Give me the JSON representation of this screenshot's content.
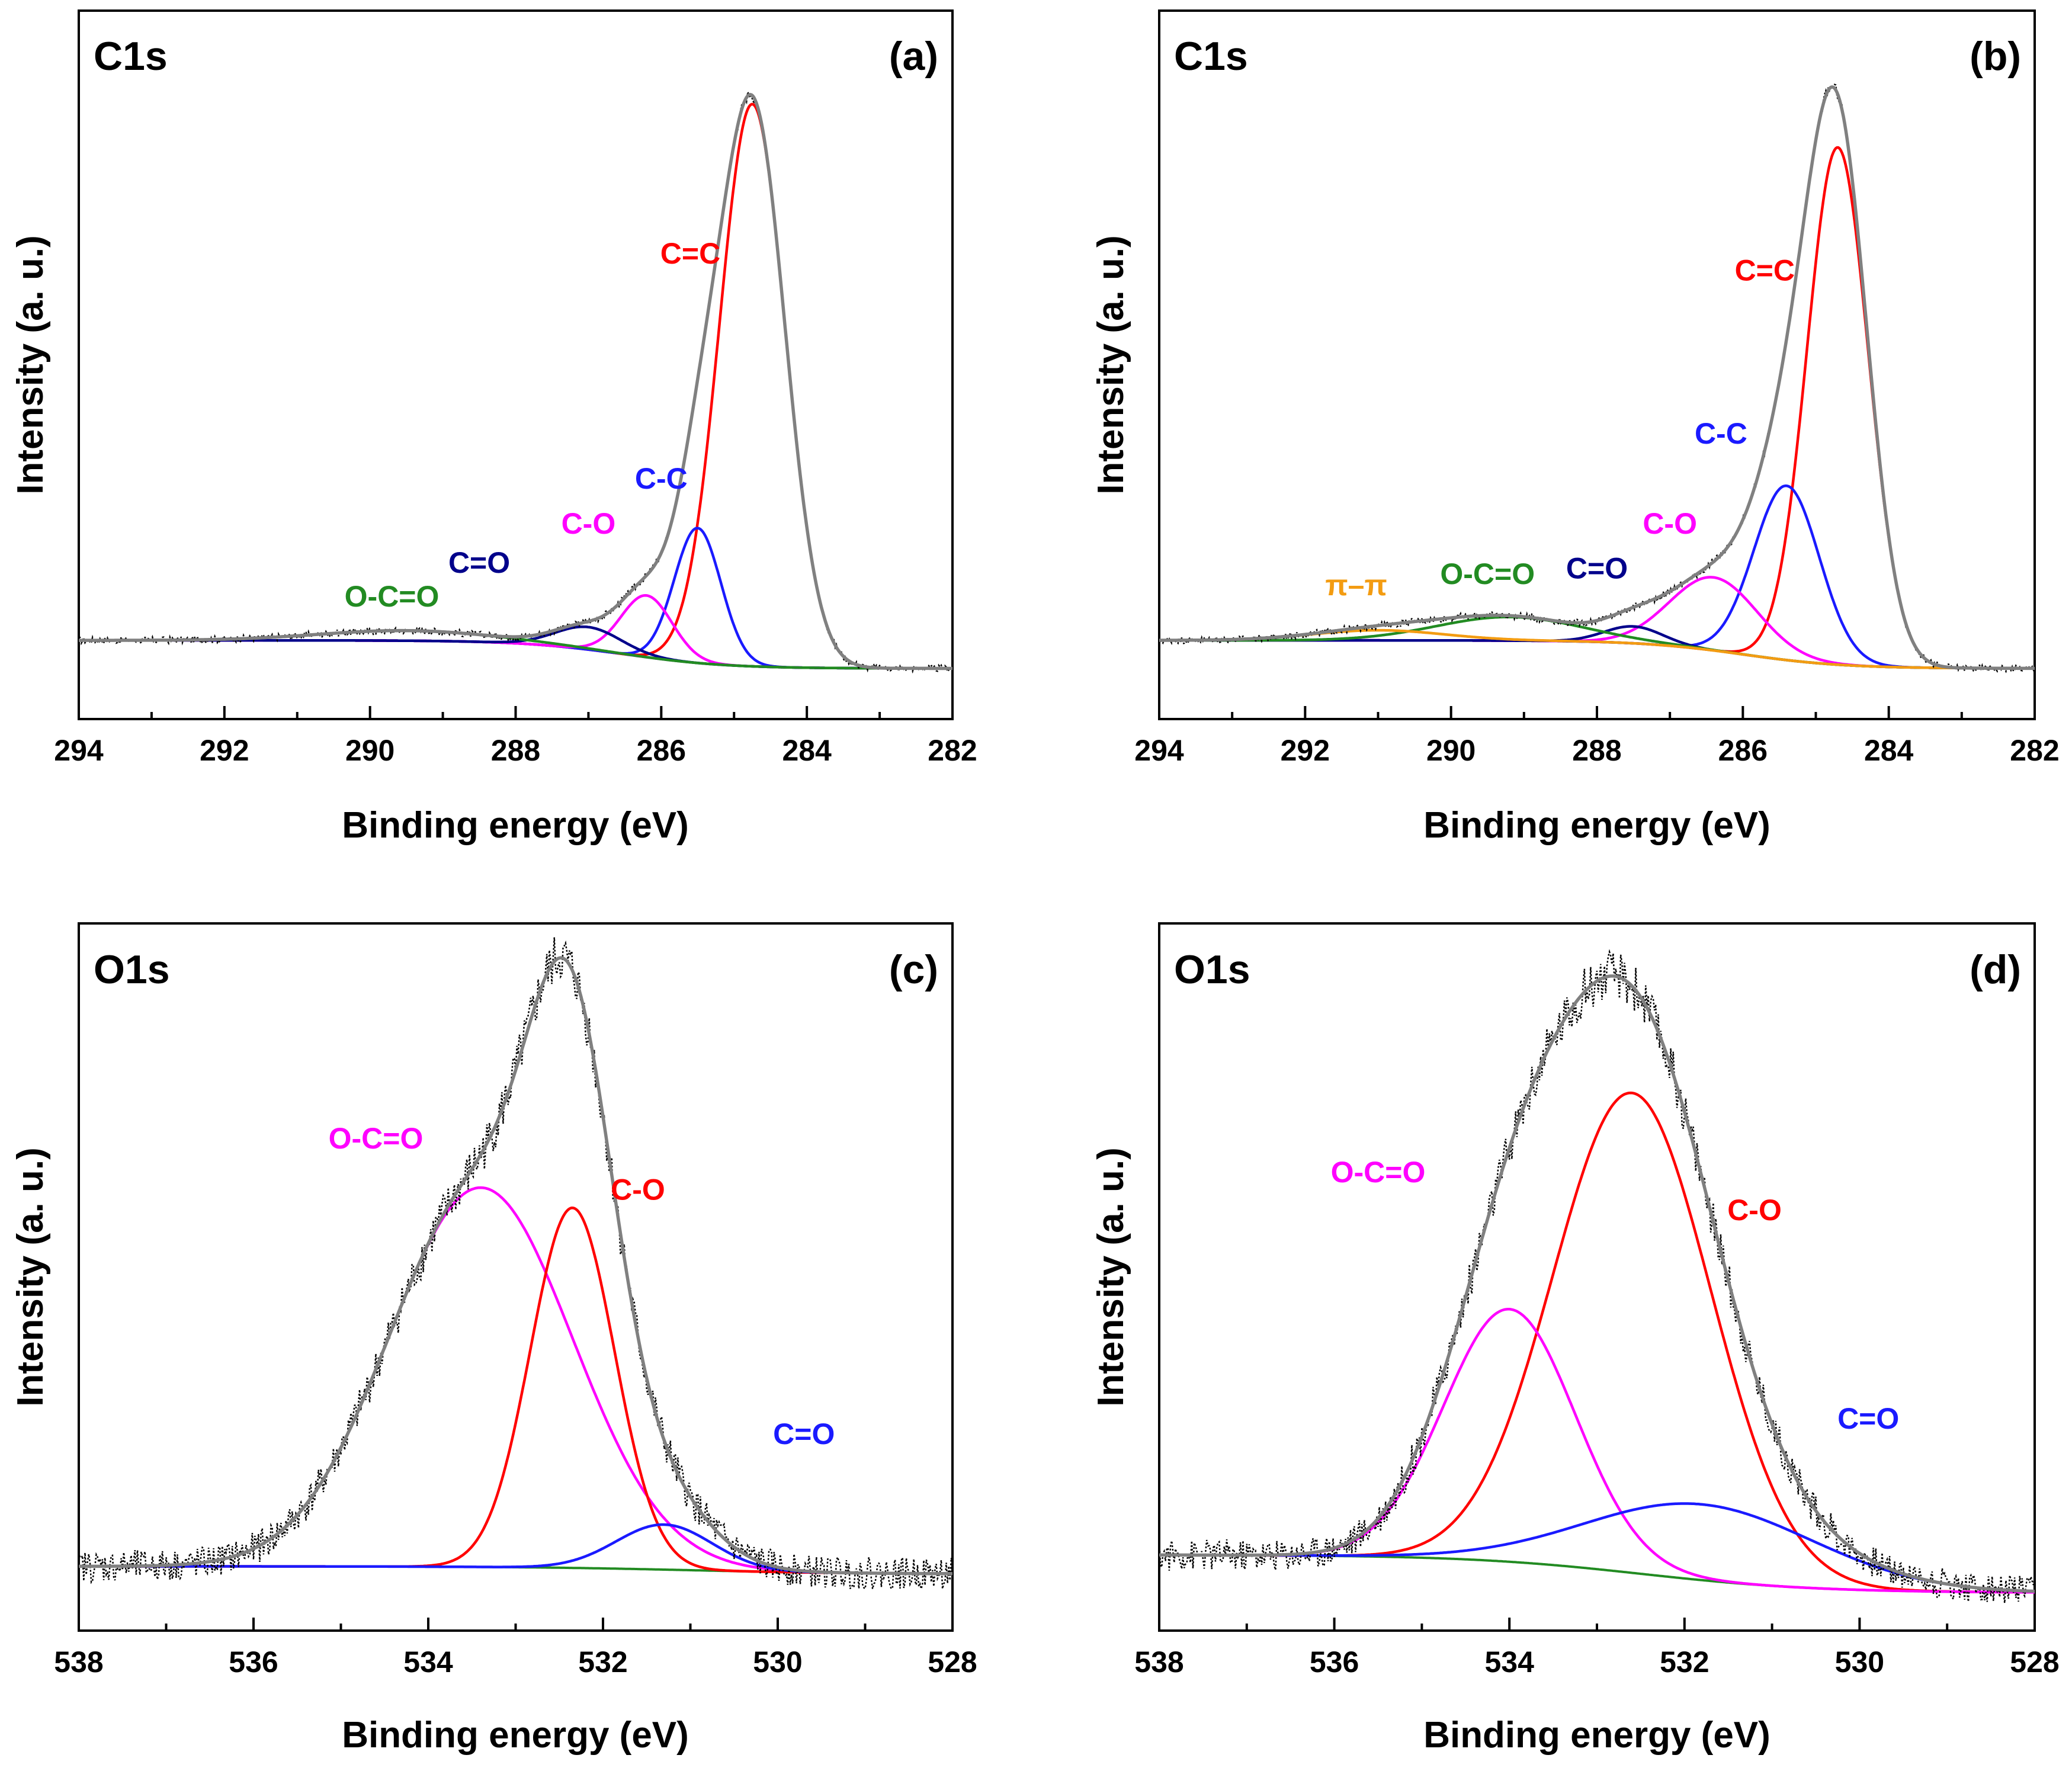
{
  "figure": {
    "description_id": "xps-c1s-o1s-four-panels"
  },
  "colors": {
    "envelope": "#808080",
    "raw": "#000000",
    "red": "#ff0000",
    "blue": "#1a1aff",
    "navy": "#00008b",
    "magenta": "#ff00ff",
    "green": "#228b22",
    "purple": "#7b2fbf",
    "orange": "#f39c12"
  },
  "chart_data": [
    {
      "type": "line",
      "panel": "(a)",
      "element": "C1s",
      "xlabel": "Binding energy (eV)",
      "ylabel": "Intensity (a. u.)",
      "xlim": [
        294,
        282
      ],
      "ylim": [
        -0.14,
        1.12
      ],
      "xticks": [
        294,
        292,
        290,
        288,
        286,
        284,
        282
      ],
      "baseline": {
        "left": 0.0,
        "right": -0.05,
        "step_center": 286.5,
        "step_width": 0.7
      },
      "components": [
        {
          "name": "C=C",
          "center": 284.75,
          "height": 1.0,
          "width": 0.45,
          "color": "red",
          "label_x": 285.6,
          "label_y": 0.67
        },
        {
          "name": "C-C",
          "center": 285.5,
          "height": 0.24,
          "width": 0.32,
          "color": "blue",
          "label_x": 286.0,
          "label_y": 0.27
        },
        {
          "name": "C-O",
          "center": 286.2,
          "height": 0.11,
          "width": 0.35,
          "color": "magenta",
          "label_x": 287.0,
          "label_y": 0.19
        },
        {
          "name": "C=O",
          "center": 287.0,
          "height": 0.04,
          "width": 0.45,
          "color": "navy",
          "label_x": 288.5,
          "label_y": 0.12
        },
        {
          "name": "O-C=O",
          "center": 289.5,
          "height": 0.018,
          "width": 1.2,
          "color": "green",
          "label_x": 289.7,
          "label_y": 0.06
        }
      ],
      "noise_amplitude": 0.006
    },
    {
      "type": "line",
      "panel": "(b)",
      "element": "C1s",
      "xlabel": "Binding energy (eV)",
      "ylabel": "Intensity (a. u.)",
      "xlim": [
        294,
        282
      ],
      "ylim": [
        -0.14,
        1.12
      ],
      "xticks": [
        294,
        292,
        290,
        288,
        286,
        284,
        282
      ],
      "baseline": {
        "left": 0.0,
        "right": -0.05,
        "step_center": 286.0,
        "step_width": 0.7
      },
      "components": [
        {
          "name": "C=C",
          "center": 284.7,
          "height": 0.92,
          "width": 0.42,
          "color": "red",
          "label_x": 285.7,
          "label_y": 0.64
        },
        {
          "name": "C-C",
          "center": 285.4,
          "height": 0.31,
          "width": 0.45,
          "color": "blue",
          "label_x": 286.3,
          "label_y": 0.35
        },
        {
          "name": "C-O",
          "center": 286.4,
          "height": 0.13,
          "width": 0.6,
          "color": "magenta",
          "label_x": 287.0,
          "label_y": 0.19
        },
        {
          "name": "C=O",
          "center": 287.5,
          "height": 0.03,
          "width": 0.4,
          "color": "navy",
          "label_x": 288.0,
          "label_y": 0.11
        },
        {
          "name": "O-C=O",
          "center": 289.2,
          "height": 0.042,
          "width": 1.0,
          "color": "green",
          "label_x": 289.5,
          "label_y": 0.1
        },
        {
          "name": "π–π",
          "center": 291.0,
          "height": 0.018,
          "width": 0.9,
          "color": "orange",
          "label_x": 291.3,
          "label_y": 0.08
        }
      ],
      "noise_amplitude": 0.006
    },
    {
      "type": "line",
      "panel": "(c)",
      "element": "O1s",
      "xlabel": "Binding energy (eV)",
      "ylabel": "Intensity (a. u.)",
      "xlim": [
        538,
        528
      ],
      "ylim": [
        -0.1,
        1.0
      ],
      "xticks": [
        538,
        536,
        534,
        532,
        530,
        528
      ],
      "baseline": {
        "left": 0.0,
        "right": -0.012,
        "step_center": 531.0,
        "step_width": 1.0
      },
      "components": [
        {
          "name": "O-C=O",
          "center": 533.4,
          "height": 0.59,
          "width": 1.05,
          "color": "magenta",
          "label_x": 534.6,
          "label_y": 0.65
        },
        {
          "name": "C-O",
          "center": 532.35,
          "height": 0.56,
          "width": 0.48,
          "color": "red",
          "label_x": 531.6,
          "label_y": 0.57
        },
        {
          "name": "C=O",
          "center": 531.3,
          "height": 0.07,
          "width": 0.55,
          "color": "blue",
          "label_x": 529.7,
          "label_y": 0.19
        }
      ],
      "noise_amplitude": 0.025
    },
    {
      "type": "line",
      "panel": "(d)",
      "element": "O1s",
      "xlabel": "Binding energy (eV)",
      "ylabel": "Intensity (a. u.)",
      "xlim": [
        538,
        528
      ],
      "ylim": [
        -0.12,
        1.0
      ],
      "xticks": [
        538,
        536,
        534,
        532,
        530,
        528
      ],
      "baseline": {
        "left": 0.0,
        "right": -0.06,
        "step_center": 532.5,
        "step_width": 1.0
      },
      "components": [
        {
          "name": "C-O",
          "center": 532.6,
          "height": 0.76,
          "width": 0.9,
          "color": "red",
          "label_x": 531.2,
          "label_y": 0.53
        },
        {
          "name": "O-C=O",
          "center": 534.0,
          "height": 0.4,
          "width": 0.75,
          "color": "magenta",
          "label_x": 535.5,
          "label_y": 0.59
        },
        {
          "name": "C=O",
          "center": 531.8,
          "height": 0.12,
          "width": 1.3,
          "color": "blue",
          "label_x": 529.9,
          "label_y": 0.2
        }
      ],
      "noise_amplitude": 0.025
    }
  ]
}
